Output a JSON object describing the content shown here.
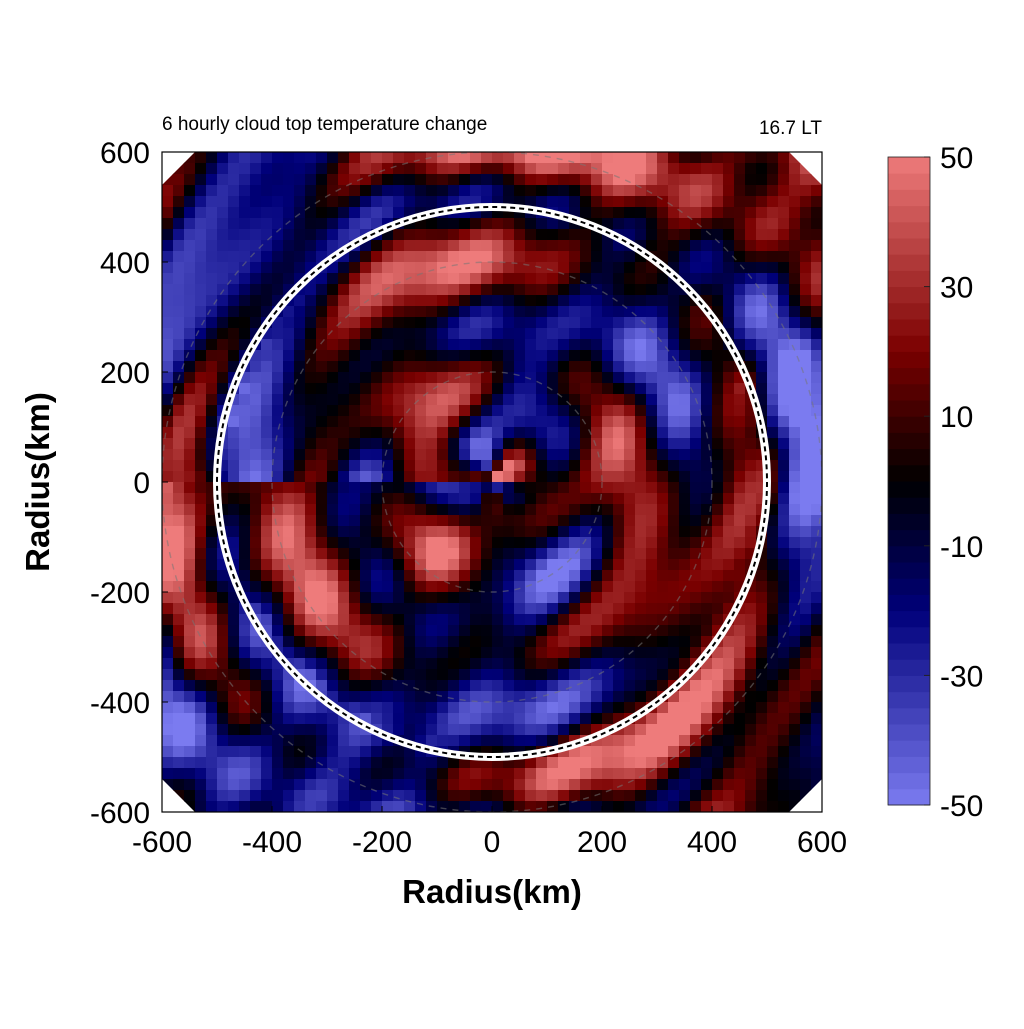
{
  "chart_data": {
    "type": "heatmap",
    "title": "6 hourly cloud top temperature change",
    "time_label": "16.7 LT",
    "xlabel": "Radius(km)",
    "ylabel": "Radius(km)",
    "xlim": [
      -600,
      600
    ],
    "ylim": [
      -600,
      600
    ],
    "x_ticks": [
      "-600",
      "-400",
      "-200",
      "0",
      "200",
      "400",
      "600"
    ],
    "y_ticks": [
      "600",
      "400",
      "200",
      "0",
      "-200",
      "-400",
      "-600"
    ],
    "reference_circle_radius": 500,
    "colorbar": {
      "min": -50,
      "max": 50,
      "ticks": [
        "50",
        "30",
        "10",
        "-10",
        "-30",
        "-50"
      ],
      "colors": [
        "#7b7bf0",
        "#00007a",
        "#000000",
        "#7a0000",
        "#ee7b7b"
      ]
    }
  }
}
